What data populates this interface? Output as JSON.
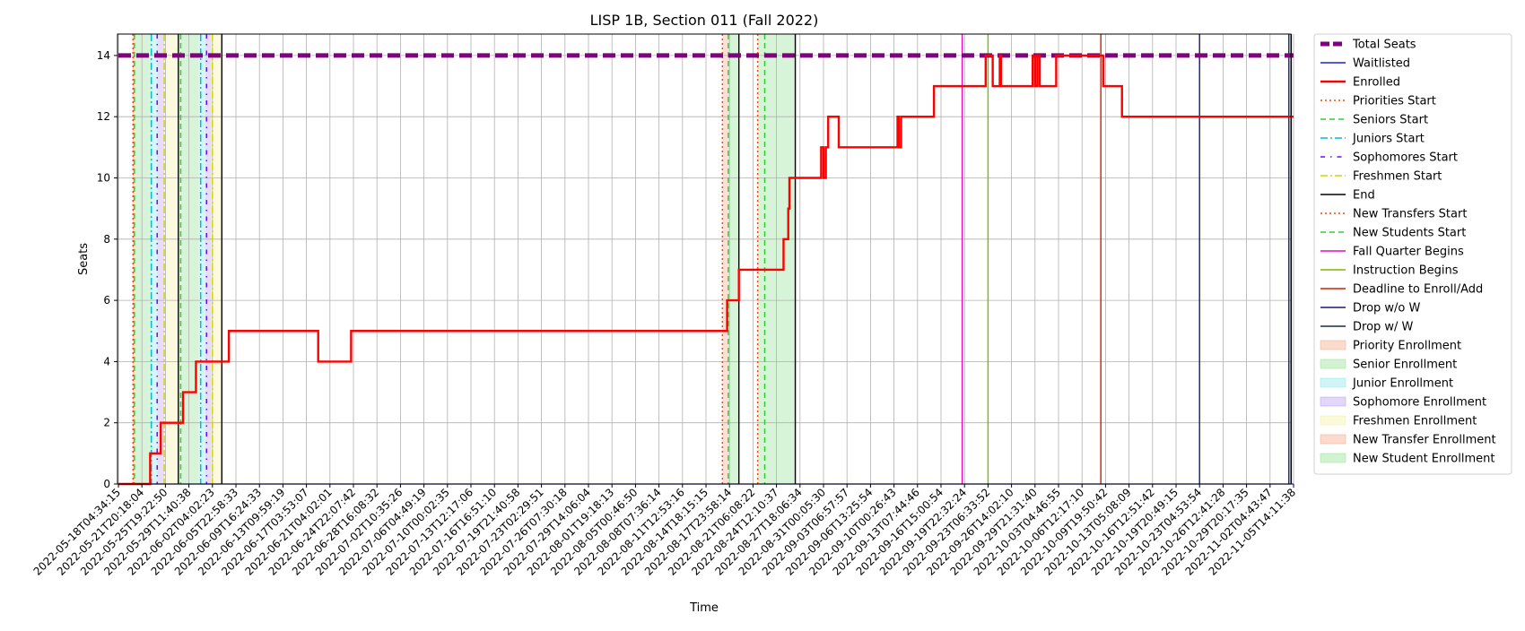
{
  "chart_data": {
    "type": "line",
    "title": "LISP 1B, Section 011 (Fall 2022)",
    "xlabel": "Time",
    "ylabel": "Seats",
    "x_start": "2022-05-18T04:34:15",
    "x_end": "2022-11-05T14:11:38",
    "ylim": [
      0,
      14.7
    ],
    "yticks": [
      0,
      2,
      4,
      6,
      8,
      10,
      12,
      14
    ],
    "grid": true,
    "legend_position": "outside-right",
    "xticks": [
      "2022-05-18T04:34:15",
      "2022-05-21T20:18:04",
      "2022-05-25T19:22:50",
      "2022-05-29T11:40:38",
      "2022-06-02T04:02:23",
      "2022-06-05T22:58:33",
      "2022-06-09T16:24:33",
      "2022-06-13T09:59:19",
      "2022-06-17T03:53:07",
      "2022-06-21T04:02:01",
      "2022-06-24T22:07:42",
      "2022-06-28T16:08:32",
      "2022-07-02T10:35:26",
      "2022-07-06T04:49:19",
      "2022-07-10T00:02:35",
      "2022-07-13T12:17:06",
      "2022-07-16T16:51:10",
      "2022-07-19T21:40:58",
      "2022-07-23T02:29:51",
      "2022-07-26T07:30:18",
      "2022-07-29T14:06:04",
      "2022-08-01T19:18:13",
      "2022-08-05T00:46:50",
      "2022-08-08T07:36:14",
      "2022-08-11T12:53:16",
      "2022-08-14T18:15:15",
      "2022-08-17T23:58:14",
      "2022-08-21T06:08:22",
      "2022-08-24T12:10:37",
      "2022-08-27T18:06:34",
      "2022-08-31T00:05:30",
      "2022-09-03T06:57:57",
      "2022-09-06T13:25:54",
      "2022-09-10T00:26:43",
      "2022-09-13T07:44:46",
      "2022-09-16T15:00:54",
      "2022-09-19T22:32:24",
      "2022-09-23T06:33:52",
      "2022-09-26T14:02:10",
      "2022-09-29T21:31:40",
      "2022-10-03T04:46:55",
      "2022-10-06T12:17:10",
      "2022-10-09T19:50:42",
      "2022-10-13T05:08:09",
      "2022-10-16T12:51:42",
      "2022-10-19T20:49:15",
      "2022-10-23T04:53:54",
      "2022-10-26T12:41:28",
      "2022-10-29T20:17:35",
      "2022-11-02T04:43:47",
      "2022-11-05T14:11:38"
    ],
    "series": [
      {
        "name": "Total Seats",
        "color": "#800080",
        "style": "dashed-thick",
        "values": [
          [
            0,
            14
          ],
          [
            50,
            14
          ]
        ]
      },
      {
        "name": "Waitlisted",
        "color": "#1f1fdd",
        "style": "solid",
        "values": [
          [
            0,
            0
          ],
          [
            50,
            0
          ]
        ]
      },
      {
        "name": "Enrolled",
        "color": "#ff0000",
        "style": "step",
        "values": [
          [
            0,
            0
          ],
          [
            1.35,
            0
          ],
          [
            1.35,
            1
          ],
          [
            1.8,
            1
          ],
          [
            1.8,
            2
          ],
          [
            2.75,
            2
          ],
          [
            2.75,
            3
          ],
          [
            3.3,
            3
          ],
          [
            3.3,
            4
          ],
          [
            4.7,
            4
          ],
          [
            4.7,
            5
          ],
          [
            8.5,
            5
          ],
          [
            8.5,
            4
          ],
          [
            9.9,
            4
          ],
          [
            9.9,
            5
          ],
          [
            25.9,
            5
          ],
          [
            25.9,
            6
          ],
          [
            26.4,
            6
          ],
          [
            26.4,
            7
          ],
          [
            28.3,
            7
          ],
          [
            28.3,
            8
          ],
          [
            28.5,
            8
          ],
          [
            28.5,
            9
          ],
          [
            28.55,
            9
          ],
          [
            28.55,
            10
          ],
          [
            29.9,
            10
          ],
          [
            29.9,
            11
          ],
          [
            30.0,
            11
          ],
          [
            30.0,
            10
          ],
          [
            30.1,
            10
          ],
          [
            30.1,
            11
          ],
          [
            30.2,
            11
          ],
          [
            30.2,
            12
          ],
          [
            30.65,
            12
          ],
          [
            30.65,
            11
          ],
          [
            33.15,
            11
          ],
          [
            33.15,
            12
          ],
          [
            33.2,
            12
          ],
          [
            33.2,
            11
          ],
          [
            33.3,
            11
          ],
          [
            33.3,
            12
          ],
          [
            34.7,
            12
          ],
          [
            34.7,
            13
          ],
          [
            36.9,
            13
          ],
          [
            36.9,
            14
          ],
          [
            37.2,
            14
          ],
          [
            37.2,
            13
          ],
          [
            37.5,
            13
          ],
          [
            37.5,
            14
          ],
          [
            37.55,
            14
          ],
          [
            37.55,
            13
          ],
          [
            38.9,
            13
          ],
          [
            38.9,
            14
          ],
          [
            39.0,
            14
          ],
          [
            39.0,
            13
          ],
          [
            39.1,
            13
          ],
          [
            39.1,
            14
          ],
          [
            39.2,
            14
          ],
          [
            39.2,
            13
          ],
          [
            39.9,
            13
          ],
          [
            39.9,
            14
          ],
          [
            41.9,
            14
          ],
          [
            41.9,
            13
          ],
          [
            42.7,
            13
          ],
          [
            42.7,
            12
          ],
          [
            50,
            12
          ]
        ]
      }
    ],
    "events": [
      {
        "name": "Priorities Start",
        "color": "#ff4500",
        "style": "dotted",
        "x": [
          0.62,
          25.7
        ]
      },
      {
        "name": "Seniors Start",
        "color": "#32cd32",
        "style": "dashed",
        "x": [
          0.68,
          2.65,
          25.95
        ]
      },
      {
        "name": "Juniors Start",
        "color": "#00bcd4",
        "style": "dashdot",
        "x": [
          1.4,
          3.5
        ]
      },
      {
        "name": "Sophomores Start",
        "color": "#6a0dff",
        "style": "dashdot2",
        "x": [
          1.65,
          3.75
        ]
      },
      {
        "name": "Freshmen Start",
        "color": "#d4d400",
        "style": "dashdot",
        "x": [
          1.95,
          4.0
        ]
      },
      {
        "name": "End",
        "color": "#000000",
        "style": "solid",
        "x": [
          2.55,
          4.4,
          26.4,
          28.8,
          49.9
        ]
      },
      {
        "name": "New Transfers Start",
        "color": "#ff4500",
        "style": "dotted",
        "x": [
          27.2
        ]
      },
      {
        "name": "New Students Start",
        "color": "#32cd32",
        "style": "dashed",
        "x": [
          27.5
        ]
      },
      {
        "name": "Fall Quarter Begins",
        "color": "#e60fbe",
        "style": "solid",
        "x": [
          35.9
        ]
      },
      {
        "name": "Instruction Begins",
        "color": "#7fb800",
        "style": "solid",
        "x": [
          37.0
        ]
      },
      {
        "name": "Deadline to Enroll/Add",
        "color": "#cc2200",
        "style": "solid",
        "x": [
          41.8
        ]
      },
      {
        "name": "Drop w/o W",
        "color": "#191970",
        "style": "solid",
        "x": [
          46.0
        ]
      },
      {
        "name": "Drop w/ W",
        "color": "#1a2a4a",
        "style": "solid",
        "x": [
          49.8
        ]
      }
    ],
    "spans": [
      {
        "name": "Priority Enrollment",
        "color": "#f4a582",
        "ranges": [
          [
            0.6,
            0.7
          ]
        ]
      },
      {
        "name": "Senior Enrollment",
        "color": "#8fe08f",
        "ranges": [
          [
            0.7,
            1.4
          ],
          [
            2.6,
            3.4
          ]
        ]
      },
      {
        "name": "Junior Enrollment",
        "color": "#8ae6ea",
        "ranges": [
          [
            1.4,
            1.65
          ],
          [
            3.4,
            3.7
          ]
        ]
      },
      {
        "name": "Sophomore Enrollment",
        "color": "#b99af0",
        "ranges": [
          [
            1.65,
            1.95
          ],
          [
            3.7,
            3.95
          ]
        ]
      },
      {
        "name": "Freshmen Enrollment",
        "color": "#f3f0a0",
        "ranges": [
          [
            1.95,
            2.55
          ],
          [
            3.95,
            4.4
          ]
        ]
      },
      {
        "name": "New Transfer Enrollment",
        "color": "#f4a582",
        "ranges": [
          [
            25.7,
            25.95
          ]
        ]
      },
      {
        "name": "New Student Enrollment",
        "color": "#8fe08f",
        "ranges": [
          [
            25.95,
            26.4
          ],
          [
            27.2,
            28.8
          ]
        ]
      }
    ],
    "legend": [
      {
        "label": "Total Seats",
        "kind": "line",
        "color": "#800080",
        "style": "dashed-thick"
      },
      {
        "label": "Waitlisted",
        "kind": "line",
        "color": "#1f1fdd",
        "style": "solid"
      },
      {
        "label": "Enrolled",
        "kind": "line",
        "color": "#ff0000",
        "style": "solid-thick"
      },
      {
        "label": "Priorities Start",
        "kind": "line",
        "color": "#ff4500",
        "style": "dotted"
      },
      {
        "label": "Seniors Start",
        "kind": "line",
        "color": "#32cd32",
        "style": "dashed"
      },
      {
        "label": "Juniors Start",
        "kind": "line",
        "color": "#00bcd4",
        "style": "dashdot"
      },
      {
        "label": "Sophomores Start",
        "kind": "line",
        "color": "#6a0dff",
        "style": "dashdot2"
      },
      {
        "label": "Freshmen Start",
        "kind": "line",
        "color": "#d4d400",
        "style": "dashdot"
      },
      {
        "label": "End",
        "kind": "line",
        "color": "#000000",
        "style": "solid"
      },
      {
        "label": "New Transfers Start",
        "kind": "line",
        "color": "#ff4500",
        "style": "dotted"
      },
      {
        "label": "New Students Start",
        "kind": "line",
        "color": "#32cd32",
        "style": "dashed"
      },
      {
        "label": "Fall Quarter Begins",
        "kind": "line",
        "color": "#e60fbe",
        "style": "solid"
      },
      {
        "label": "Instruction Begins",
        "kind": "line",
        "color": "#7fb800",
        "style": "solid"
      },
      {
        "label": "Deadline to Enroll/Add",
        "kind": "line",
        "color": "#cc2200",
        "style": "solid"
      },
      {
        "label": "Drop w/o W",
        "kind": "line",
        "color": "#191970",
        "style": "solid"
      },
      {
        "label": "Drop w/ W",
        "kind": "line",
        "color": "#1a2a4a",
        "style": "solid"
      },
      {
        "label": "Priority Enrollment",
        "kind": "patch",
        "color": "#f4a582"
      },
      {
        "label": "Senior Enrollment",
        "kind": "patch",
        "color": "#8fe08f"
      },
      {
        "label": "Junior Enrollment",
        "kind": "patch",
        "color": "#8ae6ea"
      },
      {
        "label": "Sophomore Enrollment",
        "kind": "patch",
        "color": "#b99af0"
      },
      {
        "label": "Freshmen Enrollment",
        "kind": "patch",
        "color": "#f3f0a0"
      },
      {
        "label": "New Transfer Enrollment",
        "kind": "patch",
        "color": "#f4a582"
      },
      {
        "label": "New Student Enrollment",
        "kind": "patch",
        "color": "#8fe08f"
      }
    ]
  }
}
